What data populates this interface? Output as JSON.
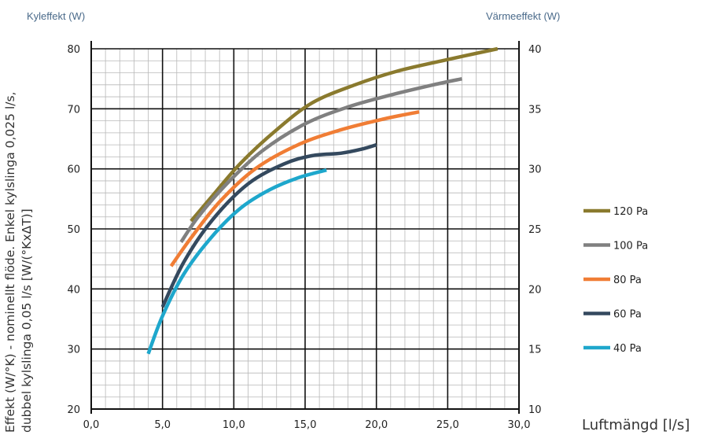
{
  "chart_data": {
    "type": "line",
    "left_axis_title": "Kyleffekt (W)",
    "right_axis_title": "Värmeeffekt (W)",
    "ylabel_line1": "Effekt (W/°K) - nominellt flöde. Enkel kylslinga 0,025 l/s,",
    "ylabel_line2": "dubbel kylslinga 0,05 l/s [W/(°KxΔT)]",
    "xlabel": "Luftmängd [l/s]",
    "xlim": [
      0,
      30
    ],
    "ylim": [
      20,
      80
    ],
    "y2lim": [
      10,
      40
    ],
    "grid": true,
    "legend_position": "right",
    "x_ticks": [
      "0,0",
      "5,0",
      "10,0",
      "15,0",
      "20,0",
      "25,0",
      "30,0"
    ],
    "y_ticks": [
      "20",
      "30",
      "40",
      "50",
      "60",
      "70",
      "80"
    ],
    "y2_ticks": [
      "10",
      "15",
      "20",
      "25",
      "30",
      "35",
      "40"
    ],
    "series": [
      {
        "name": "120 Pa",
        "color": "#8a7a2e",
        "x": [
          7.0,
          8.5,
          10.5,
          13.0,
          15.5,
          18.5,
          21.5,
          25.0,
          28.5
        ],
        "y": [
          51.3,
          55.5,
          61.0,
          66.5,
          71.0,
          74.0,
          76.3,
          78.2,
          80.0
        ]
      },
      {
        "name": "100 Pa",
        "color": "#808080",
        "x": [
          6.3,
          7.5,
          9.5,
          12.0,
          15.0,
          18.0,
          21.0,
          24.0,
          26.0
        ],
        "y": [
          47.8,
          52.0,
          57.5,
          63.0,
          67.5,
          70.3,
          72.3,
          74.0,
          75.0
        ]
      },
      {
        "name": "80 Pa",
        "color": "#f07d35",
        "x": [
          5.6,
          7.0,
          9.0,
          11.5,
          14.5,
          17.5,
          20.5,
          23.0
        ],
        "y": [
          43.8,
          48.5,
          54.5,
          60.0,
          64.0,
          66.5,
          68.3,
          69.5
        ]
      },
      {
        "name": "60 Pa",
        "color": "#34495e",
        "x": [
          5.0,
          6.5,
          8.5,
          11.0,
          13.5,
          15.5,
          17.5,
          19.0,
          20.0
        ],
        "y": [
          37.0,
          44.5,
          51.5,
          57.5,
          60.8,
          62.2,
          62.6,
          63.3,
          64.0
        ]
      },
      {
        "name": "40 Pa",
        "color": "#1ea7cc",
        "x": [
          4.0,
          5.0,
          6.5,
          8.5,
          10.5,
          12.5,
          14.5,
          16.5
        ],
        "y": [
          29.2,
          35.5,
          42.5,
          48.8,
          53.5,
          56.5,
          58.5,
          59.8
        ]
      }
    ]
  }
}
